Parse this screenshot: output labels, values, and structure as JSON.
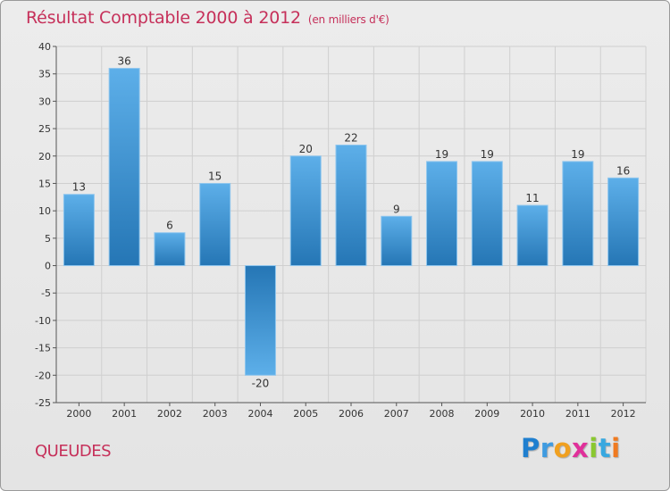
{
  "chart_data": {
    "type": "bar",
    "title": "Résultat Comptable 2000 à 2012",
    "subtitle": "(en milliers d'€)",
    "categories": [
      "2000",
      "2001",
      "2002",
      "2003",
      "2004",
      "2005",
      "2006",
      "2007",
      "2008",
      "2009",
      "2010",
      "2011",
      "2012"
    ],
    "values": [
      13,
      36,
      6,
      15,
      -20,
      20,
      22,
      9,
      19,
      19,
      11,
      19,
      16
    ],
    "ylim": [
      -25,
      40
    ],
    "yticks": [
      40,
      35,
      30,
      25,
      20,
      15,
      10,
      5,
      0,
      -5,
      -10,
      -15,
      -20,
      -25
    ],
    "xlabel": "",
    "ylabel": "",
    "grid": true,
    "colors": {
      "bar_light": "#5dafe9",
      "bar_dark": "#2576b5",
      "grid": "#cfcfcf"
    }
  },
  "footer": {
    "place_name": "QUEUDES",
    "brand_letters": [
      {
        "ch": "P",
        "color": "#1f7fcf"
      },
      {
        "ch": "r",
        "color": "#3f9be0"
      },
      {
        "ch": "o",
        "color": "#f0a020"
      },
      {
        "ch": "x",
        "color": "#e0309a"
      },
      {
        "ch": "i",
        "color": "#8ac830"
      },
      {
        "ch": "t",
        "color": "#38a8e0"
      },
      {
        "ch": "i",
        "color": "#f07a20"
      }
    ]
  }
}
